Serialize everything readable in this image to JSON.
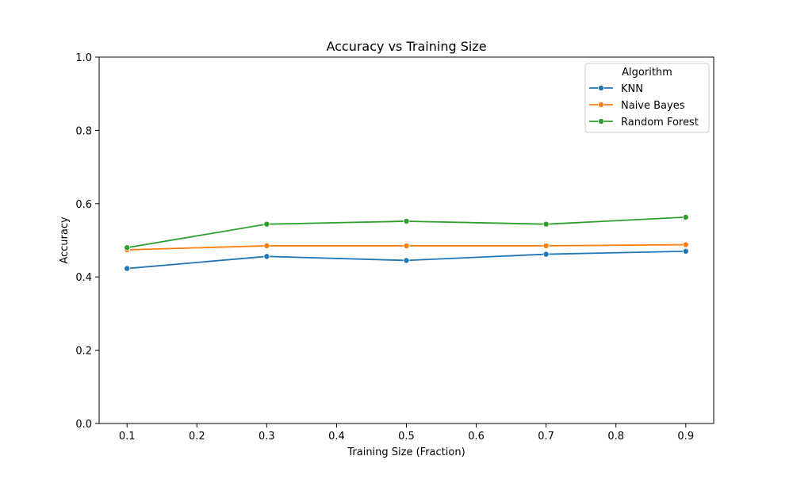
{
  "chart_data": {
    "type": "line",
    "title": "Accuracy vs Training Size",
    "xlabel": "Training Size (Fraction)",
    "ylabel": "Accuracy",
    "xlim": [
      0.06,
      0.94
    ],
    "ylim": [
      0.0,
      1.0
    ],
    "xticks": [
      "0.1",
      "0.2",
      "0.3",
      "0.4",
      "0.5",
      "0.6",
      "0.7",
      "0.8",
      "0.9"
    ],
    "yticks": [
      "0.0",
      "0.2",
      "0.4",
      "0.6",
      "0.8",
      "1.0"
    ],
    "x": [
      0.1,
      0.3,
      0.5,
      0.7,
      0.9
    ],
    "legend": {
      "title": "Algorithm",
      "placement": "top-right"
    },
    "grid": false,
    "series": [
      {
        "name": "KNN",
        "color": "#1f77b4",
        "values": [
          0.423,
          0.456,
          0.445,
          0.462,
          0.47
        ]
      },
      {
        "name": "Naive Bayes",
        "color": "#ff7f0e",
        "values": [
          0.474,
          0.485,
          0.485,
          0.485,
          0.488
        ]
      },
      {
        "name": "Random Forest",
        "color": "#2ca02c",
        "values": [
          0.48,
          0.544,
          0.552,
          0.544,
          0.563
        ]
      }
    ]
  }
}
